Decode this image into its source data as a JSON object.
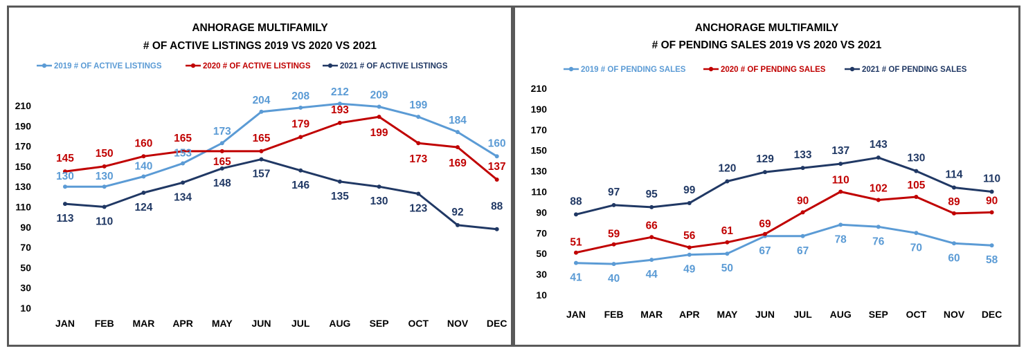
{
  "chart_data": [
    {
      "type": "line",
      "title_line1": "ANHORAGE MULTIFAMILY",
      "title_line2": "# OF ACTIVE LISTINGS 2019 VS 2020 VS 2021",
      "categories": [
        "JAN",
        "FEB",
        "MAR",
        "APR",
        "MAY",
        "JUN",
        "JUL",
        "AUG",
        "SEP",
        "OCT",
        "NOV",
        "DEC"
      ],
      "yticks": [
        10,
        30,
        50,
        70,
        90,
        110,
        130,
        150,
        170,
        190,
        210
      ],
      "ylim": [
        0,
        220
      ],
      "grid": false,
      "legend_position": "top",
      "series": [
        {
          "name": "2019 # OF ACTIVE LISTINGS",
          "color": "#5b9bd5",
          "values": [
            130,
            130,
            140,
            153,
            173,
            204,
            208,
            212,
            209,
            199,
            184,
            160
          ]
        },
        {
          "name": "2020 # OF ACTIVE LISTINGS",
          "color": "#c00000",
          "values": [
            145,
            150,
            160,
            165,
            165,
            165,
            179,
            193,
            199,
            173,
            169,
            137
          ]
        },
        {
          "name": "2021 # OF ACTIVE LISTINGS",
          "color": "#203864",
          "values": [
            113,
            110,
            124,
            134,
            148,
            157,
            146,
            135,
            130,
            123,
            92,
            88
          ]
        }
      ]
    },
    {
      "type": "line",
      "title_line1": "ANCHORAGE MULTIFAMILY",
      "title_line2": "# OF PENDING SALES 2019 VS 2020 VS 2021",
      "categories": [
        "JAN",
        "FEB",
        "MAR",
        "APR",
        "MAY",
        "JUN",
        "JUL",
        "AUG",
        "SEP",
        "OCT",
        "NOV",
        "DEC"
      ],
      "yticks": [
        10,
        30,
        50,
        70,
        90,
        110,
        130,
        150,
        170,
        190,
        210
      ],
      "ylim": [
        0,
        220
      ],
      "grid": false,
      "legend_position": "top",
      "series": [
        {
          "name": "2019 # OF PENDING SALES",
          "color": "#5b9bd5",
          "values": [
            41,
            40,
            44,
            49,
            50,
            67,
            67,
            78,
            76,
            70,
            60,
            58
          ]
        },
        {
          "name": "2020 # OF PENDING SALES",
          "color": "#c00000",
          "values": [
            51,
            59,
            66,
            56,
            61,
            69,
            90,
            110,
            102,
            105,
            89,
            90
          ]
        },
        {
          "name": "2021 # OF PENDING SALES",
          "color": "#203864",
          "values": [
            88,
            97,
            95,
            99,
            120,
            129,
            133,
            137,
            143,
            130,
            114,
            110
          ]
        }
      ]
    }
  ]
}
